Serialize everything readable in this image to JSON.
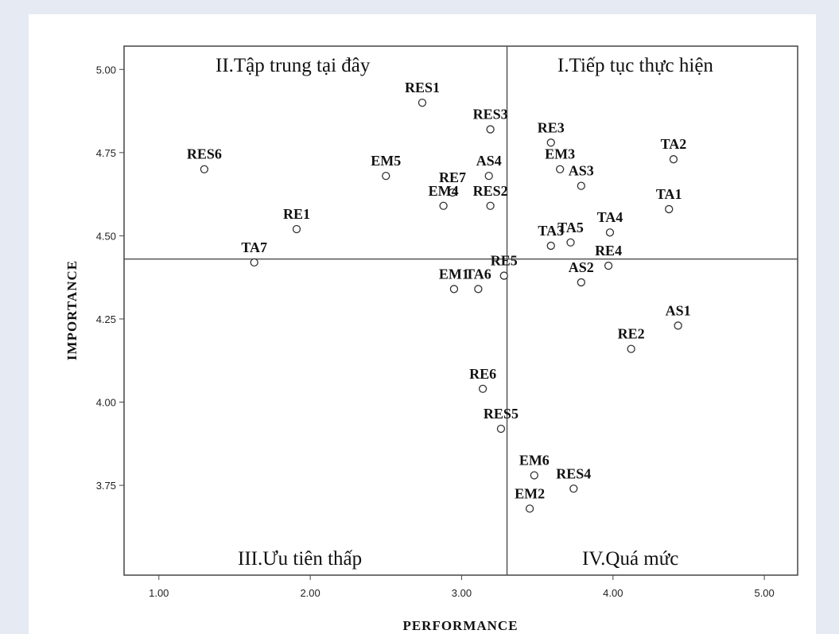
{
  "chart_data": {
    "type": "scatter",
    "xlabel": "PERFORMANCE",
    "ylabel": "IMPORTANCE",
    "xlim": [
      0.77,
      5.22
    ],
    "ylim": [
      3.48,
      5.07
    ],
    "xticks": [
      1.0,
      2.0,
      3.0,
      4.0,
      5.0
    ],
    "xtick_labels": [
      "1.00",
      "2.00",
      "3.00",
      "4.00",
      "5.00"
    ],
    "yticks": [
      3.75,
      4.0,
      4.25,
      4.5,
      4.75,
      5.0
    ],
    "ytick_labels": [
      "3.75",
      "4.00",
      "4.25",
      "4.50",
      "4.75",
      "5.00"
    ],
    "reference_lines": {
      "x": 3.3,
      "y": 4.43
    },
    "quadrant_labels": {
      "top_left": "II.Tập trung tại đây",
      "top_right": "I.Tiếp tục thực hiện",
      "bottom_left": "III.Ưu tiên thấp",
      "bottom_right": "IV.Quá mức"
    },
    "marker": "open-circle",
    "grid": false,
    "points": [
      {
        "label": "RES1",
        "x": 2.74,
        "y": 4.9
      },
      {
        "label": "RES3",
        "x": 3.19,
        "y": 4.82
      },
      {
        "label": "RE3",
        "x": 3.59,
        "y": 4.78
      },
      {
        "label": "TA2",
        "x": 4.4,
        "y": 4.73
      },
      {
        "label": "RES6",
        "x": 1.3,
        "y": 4.7
      },
      {
        "label": "EM5",
        "x": 2.5,
        "y": 4.68
      },
      {
        "label": "AS4",
        "x": 3.18,
        "y": 4.68
      },
      {
        "label": "EM3",
        "x": 3.65,
        "y": 4.7
      },
      {
        "label": "AS3",
        "x": 3.79,
        "y": 4.65
      },
      {
        "label": "RE7",
        "x": 2.94,
        "y": 4.63
      },
      {
        "label": "EM4",
        "x": 2.88,
        "y": 4.59
      },
      {
        "label": "RES2",
        "x": 3.19,
        "y": 4.59
      },
      {
        "label": "TA1",
        "x": 4.37,
        "y": 4.58
      },
      {
        "label": "RE1",
        "x": 1.91,
        "y": 4.52
      },
      {
        "label": "TA4",
        "x": 3.98,
        "y": 4.51
      },
      {
        "label": "TA5",
        "x": 3.72,
        "y": 4.48
      },
      {
        "label": "TA3",
        "x": 3.59,
        "y": 4.47
      },
      {
        "label": "TA7",
        "x": 1.63,
        "y": 4.42
      },
      {
        "label": "RE4",
        "x": 3.97,
        "y": 4.41
      },
      {
        "label": "RE5",
        "x": 3.28,
        "y": 4.38
      },
      {
        "label": "AS2",
        "x": 3.79,
        "y": 4.36
      },
      {
        "label": "EM1",
        "x": 2.95,
        "y": 4.34
      },
      {
        "label": "TA6",
        "x": 3.11,
        "y": 4.34
      },
      {
        "label": "AS1",
        "x": 4.43,
        "y": 4.23
      },
      {
        "label": "RE2",
        "x": 4.12,
        "y": 4.16
      },
      {
        "label": "RE6",
        "x": 3.14,
        "y": 4.04
      },
      {
        "label": "RES5",
        "x": 3.26,
        "y": 3.92
      },
      {
        "label": "EM6",
        "x": 3.48,
        "y": 3.78
      },
      {
        "label": "RES4",
        "x": 3.74,
        "y": 3.74
      },
      {
        "label": "EM2",
        "x": 3.45,
        "y": 3.68
      }
    ]
  }
}
